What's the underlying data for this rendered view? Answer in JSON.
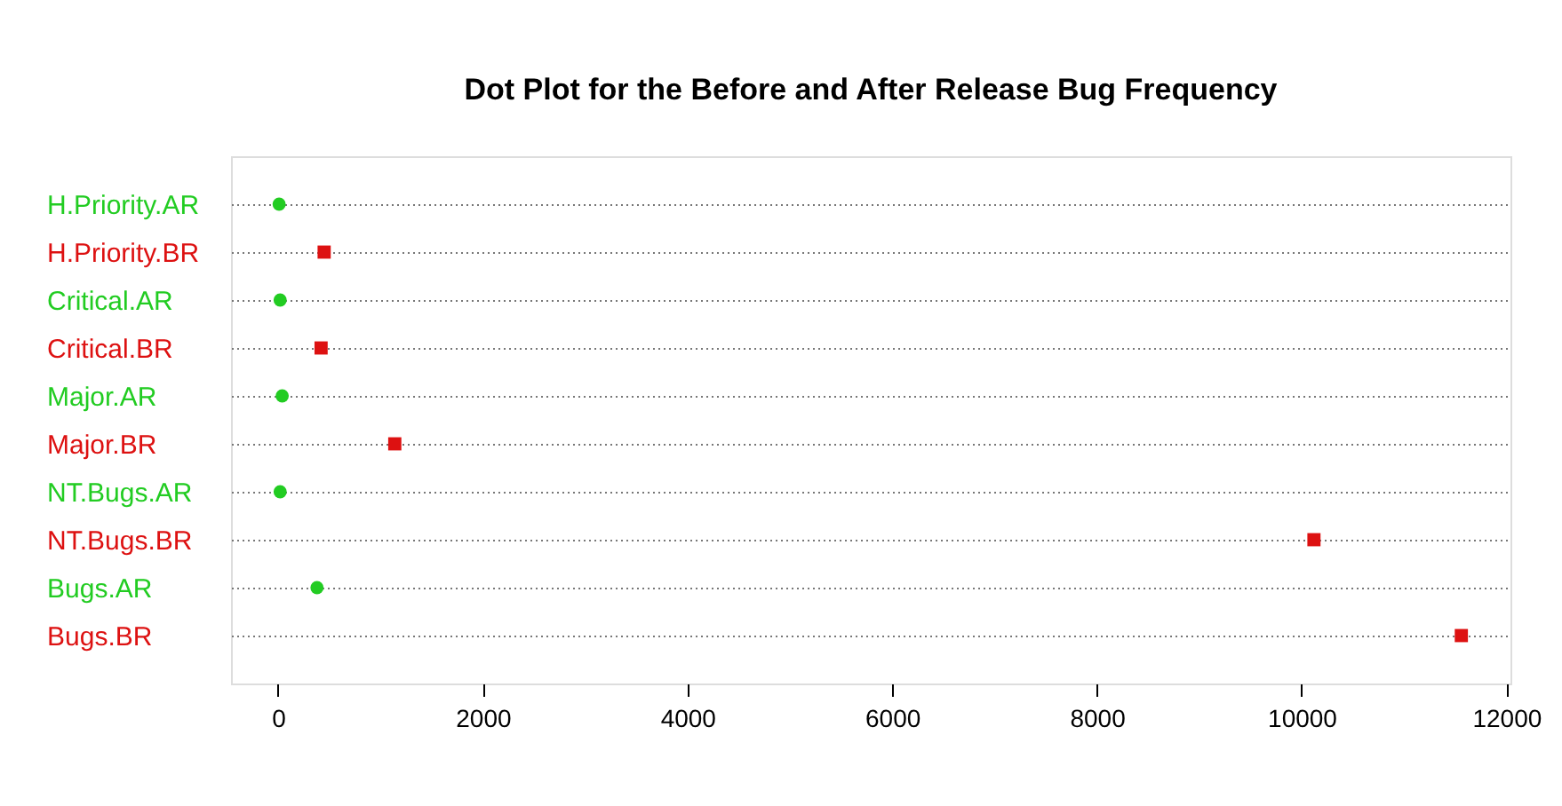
{
  "chart_data": {
    "type": "scatter",
    "orientation": "horizontal",
    "title": "Dot Plot for the Before and After Release Bug Frequency",
    "categories": [
      "H.Priority.AR",
      "H.Priority.BR",
      "Critical.AR",
      "Critical.BR",
      "Major.AR",
      "Major.BR",
      "NT.Bugs.AR",
      "NT.Bugs.BR",
      "Bugs.AR",
      "Bugs.BR"
    ],
    "series": [
      {
        "color": "#22cc22",
        "marker": "circle",
        "values": [
          10,
          null,
          20,
          null,
          40,
          null,
          20,
          null,
          380,
          null
        ]
      },
      {
        "color": "#dd1111",
        "marker": "square",
        "values": [
          null,
          450,
          null,
          420,
          null,
          1140,
          null,
          10120,
          null,
          11560
        ]
      }
    ],
    "xlim": [
      -460,
      12040
    ],
    "xticks": [
      0,
      2000,
      4000,
      6000,
      8000,
      10000,
      12000
    ],
    "grid": "y",
    "line_style": "dotted"
  }
}
